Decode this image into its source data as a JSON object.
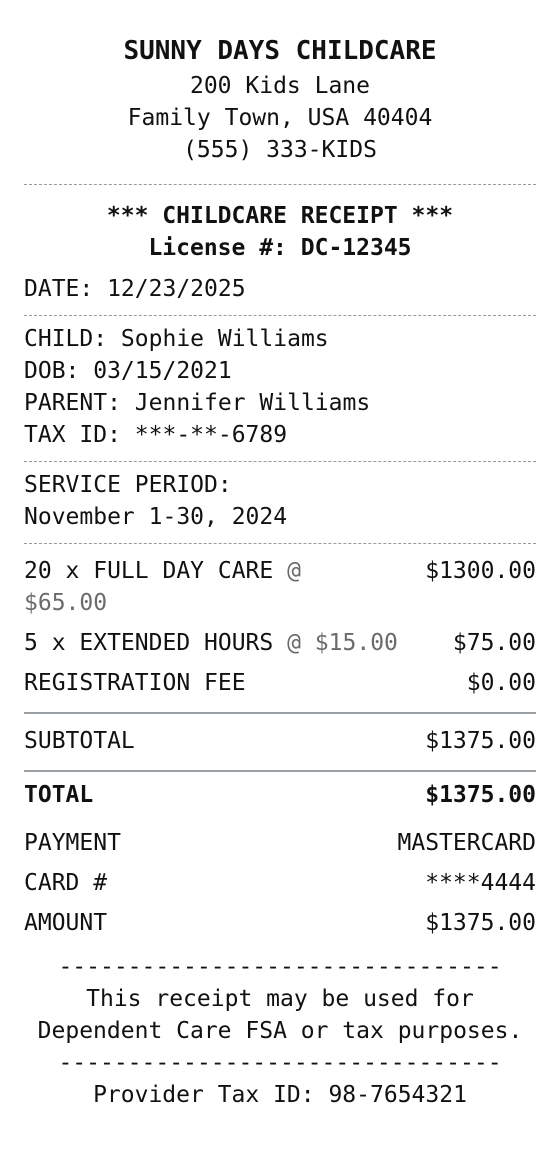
{
  "header": {
    "business_name": "SUNNY DAYS CHILDCARE",
    "address1": "200 Kids Lane",
    "address2": "Family Town, USA 40404",
    "phone": "(555) 333-KIDS"
  },
  "receipt": {
    "title": "*** CHILDCARE RECEIPT ***",
    "license": "License #: DC-12345",
    "date": "DATE: 12/23/2025"
  },
  "child": {
    "name": "CHILD: Sophie Williams",
    "dob": "DOB: 03/15/2021",
    "parent": "PARENT: Jennifer Williams",
    "tax_id": "TAX ID: ***-**-6789"
  },
  "service": {
    "label": "SERVICE PERIOD:",
    "period": "November 1-30, 2024"
  },
  "items": [
    {
      "desc": "20 x FULL DAY CARE",
      "rate": "@",
      "rate_cont": "$65.00",
      "amount": "$1300.00"
    },
    {
      "desc": "5 x EXTENDED HOURS",
      "rate": "@ $15.00",
      "amount": "$75.00"
    },
    {
      "desc": "REGISTRATION FEE",
      "amount": "$0.00"
    }
  ],
  "totals": {
    "subtotal_label": "SUBTOTAL",
    "subtotal": "$1375.00",
    "total_label": "TOTAL",
    "total": "$1375.00"
  },
  "payment": {
    "method_label": "PAYMENT",
    "method": "MASTERCARD",
    "card_label": "CARD #",
    "card": "****4444",
    "amount_label": "AMOUNT",
    "amount": "$1375.00"
  },
  "footer": {
    "rule": "--------------------------------",
    "note1": "This receipt may be used for",
    "note2": "Dependent Care FSA or tax purposes.",
    "provider_tax_id": "Provider Tax ID: 98-7654321"
  }
}
